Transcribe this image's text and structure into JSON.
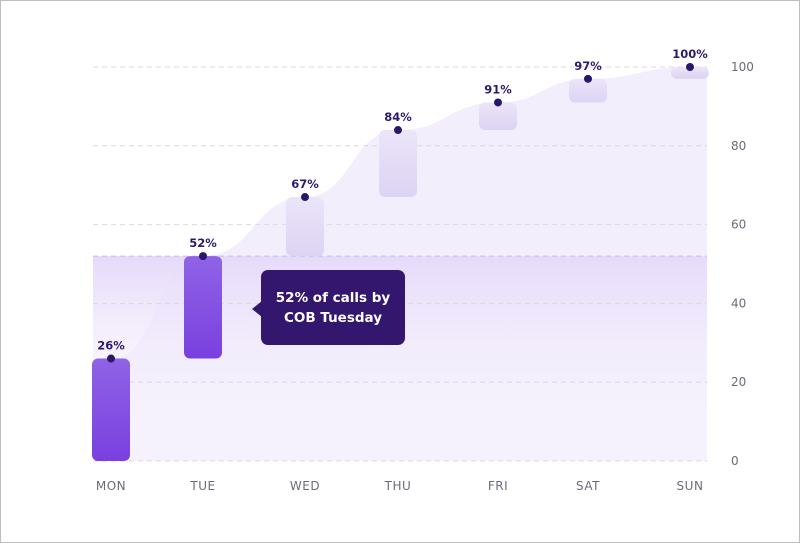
{
  "chart_data": {
    "type": "bar",
    "categories": [
      "MON",
      "TUE",
      "WED",
      "THU",
      "FRI",
      "SAT",
      "SUN"
    ],
    "series": [
      {
        "values": [
          26,
          52,
          67,
          84,
          91,
          97,
          100
        ]
      }
    ],
    "bar_starts": [
      0,
      26,
      52,
      67,
      84,
      91,
      97
    ],
    "data_labels": [
      "26%",
      "52%",
      "67%",
      "84%",
      "91%",
      "97%",
      "100%"
    ],
    "y_ticks": [
      "0",
      "20",
      "40",
      "60",
      "80",
      "100"
    ],
    "ylim": [
      0,
      100
    ],
    "grid": true,
    "y_axis_side": "right",
    "highlight_category": "TUE",
    "annotation": "52% of calls by COB Tuesday",
    "colors": {
      "highlight_top": "#8f63e6",
      "highlight_bottom": "#7a40df",
      "faded_top": "#ebe5f9",
      "faded_bottom": "#ddd3f3",
      "area": "#f3eefc",
      "band": "#e6dafa",
      "dot": "#2a1769",
      "callout": "#33176f"
    }
  }
}
